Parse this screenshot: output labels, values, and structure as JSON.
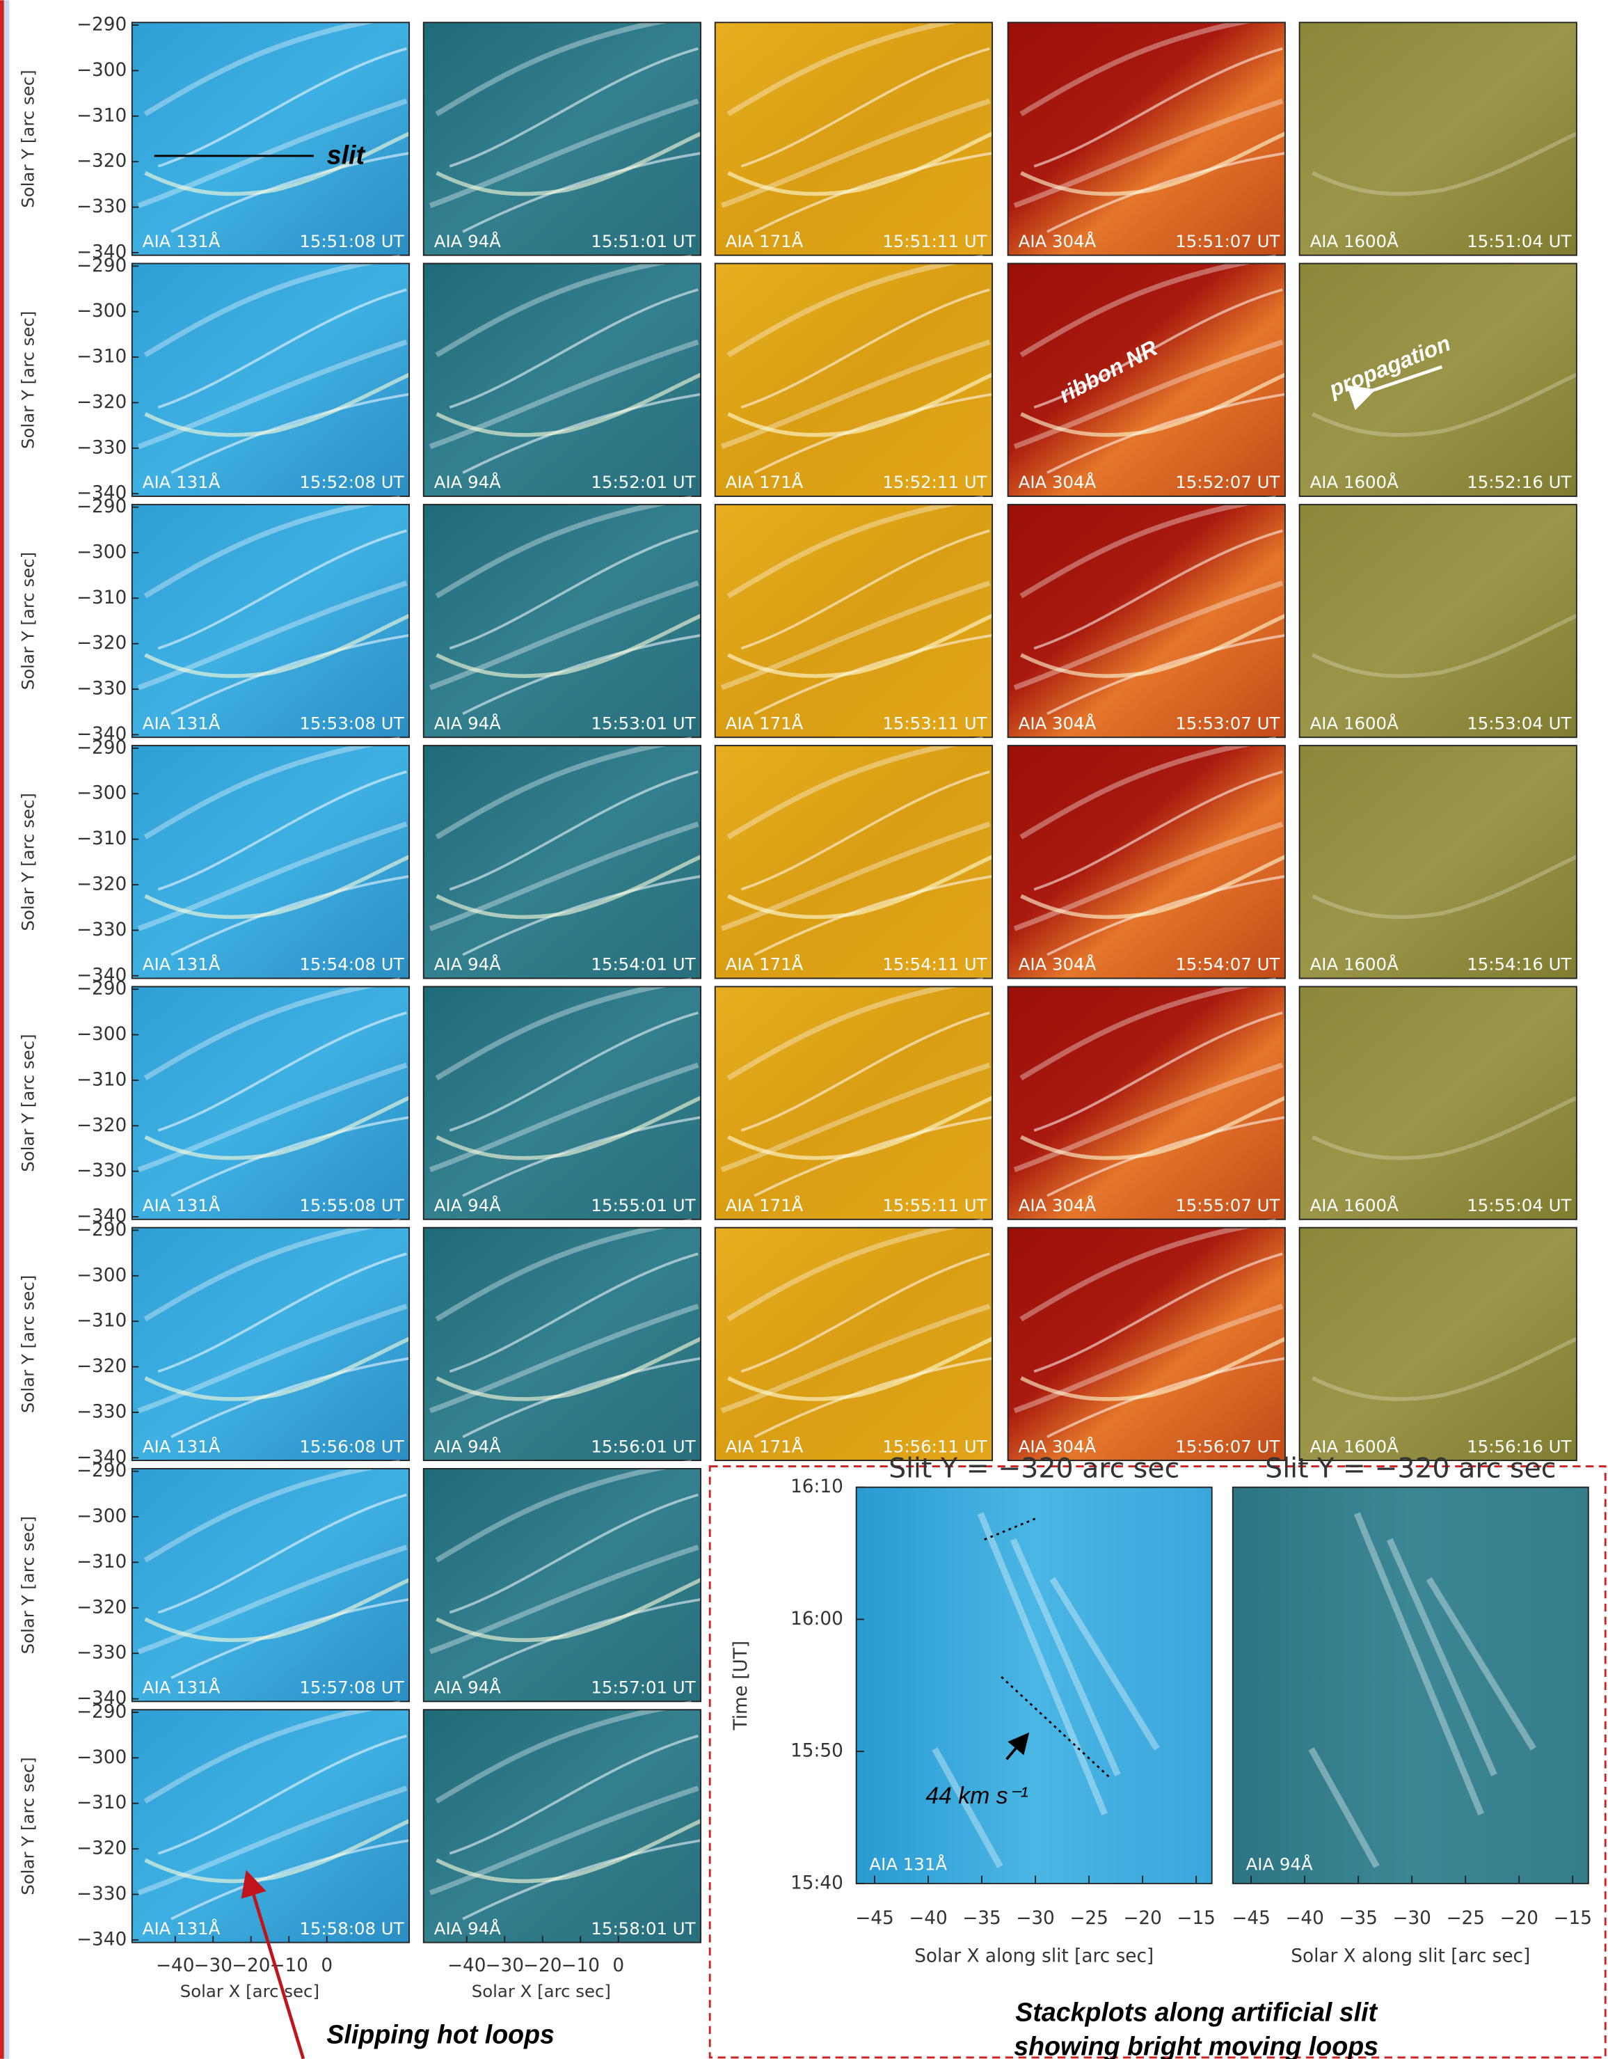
{
  "y_axis": {
    "label": "Solar Y [arc sec]",
    "ticks": [
      "−290",
      "−300",
      "−310",
      "−320",
      "−330",
      "−340"
    ]
  },
  "x_axis": {
    "label": "Solar X [arc sec]",
    "ticks": [
      "−40",
      "−30",
      "−20",
      "−10",
      "0"
    ]
  },
  "rows": [
    {
      "panels": [
        {
          "channel": "AIA 131Å",
          "time": "15:51:08 UT"
        },
        {
          "channel": "AIA 94Å",
          "time": "15:51:01 UT"
        },
        {
          "channel": "AIA 171Å",
          "time": "15:51:11 UT"
        },
        {
          "channel": "AIA 304Å",
          "time": "15:51:07 UT"
        },
        {
          "channel": "AIA 1600Å",
          "time": "15:51:04 UT"
        }
      ]
    },
    {
      "panels": [
        {
          "channel": "AIA 131Å",
          "time": "15:52:08 UT"
        },
        {
          "channel": "AIA 94Å",
          "time": "15:52:01 UT"
        },
        {
          "channel": "AIA 171Å",
          "time": "15:52:11 UT"
        },
        {
          "channel": "AIA 304Å",
          "time": "15:52:07 UT"
        },
        {
          "channel": "AIA 1600Å",
          "time": "15:52:16 UT"
        }
      ]
    },
    {
      "panels": [
        {
          "channel": "AIA 131Å",
          "time": "15:53:08 UT"
        },
        {
          "channel": "AIA 94Å",
          "time": "15:53:01 UT"
        },
        {
          "channel": "AIA 171Å",
          "time": "15:53:11 UT"
        },
        {
          "channel": "AIA 304Å",
          "time": "15:53:07 UT"
        },
        {
          "channel": "AIA 1600Å",
          "time": "15:53:04 UT"
        }
      ]
    },
    {
      "panels": [
        {
          "channel": "AIA 131Å",
          "time": "15:54:08 UT"
        },
        {
          "channel": "AIA 94Å",
          "time": "15:54:01 UT"
        },
        {
          "channel": "AIA 171Å",
          "time": "15:54:11 UT"
        },
        {
          "channel": "AIA 304Å",
          "time": "15:54:07 UT"
        },
        {
          "channel": "AIA 1600Å",
          "time": "15:54:16 UT"
        }
      ]
    },
    {
      "panels": [
        {
          "channel": "AIA 131Å",
          "time": "15:55:08 UT"
        },
        {
          "channel": "AIA 94Å",
          "time": "15:55:01 UT"
        },
        {
          "channel": "AIA 171Å",
          "time": "15:55:11 UT"
        },
        {
          "channel": "AIA 304Å",
          "time": "15:55:07 UT"
        },
        {
          "channel": "AIA 1600Å",
          "time": "15:55:04 UT"
        }
      ]
    },
    {
      "panels": [
        {
          "channel": "AIA 131Å",
          "time": "15:56:08 UT"
        },
        {
          "channel": "AIA 94Å",
          "time": "15:56:01 UT"
        },
        {
          "channel": "AIA 171Å",
          "time": "15:56:11 UT"
        },
        {
          "channel": "AIA 304Å",
          "time": "15:56:07 UT"
        },
        {
          "channel": "AIA 1600Å",
          "time": "15:56:16 UT"
        }
      ]
    },
    {
      "panels": [
        {
          "channel": "AIA 131Å",
          "time": "15:57:08 UT"
        },
        {
          "channel": "AIA 94Å",
          "time": "15:57:01 UT"
        }
      ]
    },
    {
      "panels": [
        {
          "channel": "AIA 131Å",
          "time": "15:58:08 UT"
        },
        {
          "channel": "AIA 94Å",
          "time": "15:58:01 UT"
        }
      ]
    }
  ],
  "annotations": {
    "slit": "slit",
    "ribbon": "ribbon NR",
    "propagation": "propagation",
    "slipping": "Slipping hot loops"
  },
  "stackplots": {
    "titles": [
      "Slit Y = −320 arc sec",
      "Slit Y = −320 arc sec"
    ],
    "time_label": "Time [UT]",
    "time_ticks": [
      "16:10",
      "16:00",
      "15:50",
      "15:40"
    ],
    "x_ticks": [
      "−45",
      "−40",
      "−35",
      "−30",
      "−25",
      "−20",
      "−15"
    ],
    "x_label": "Solar X along slit [arc sec]",
    "panel_labels": [
      "AIA 131Å",
      "AIA 94Å"
    ],
    "speed": "44 km s⁻¹",
    "caption": [
      "Stackplots along artificial slit",
      "showing bright moving loops"
    ]
  }
}
